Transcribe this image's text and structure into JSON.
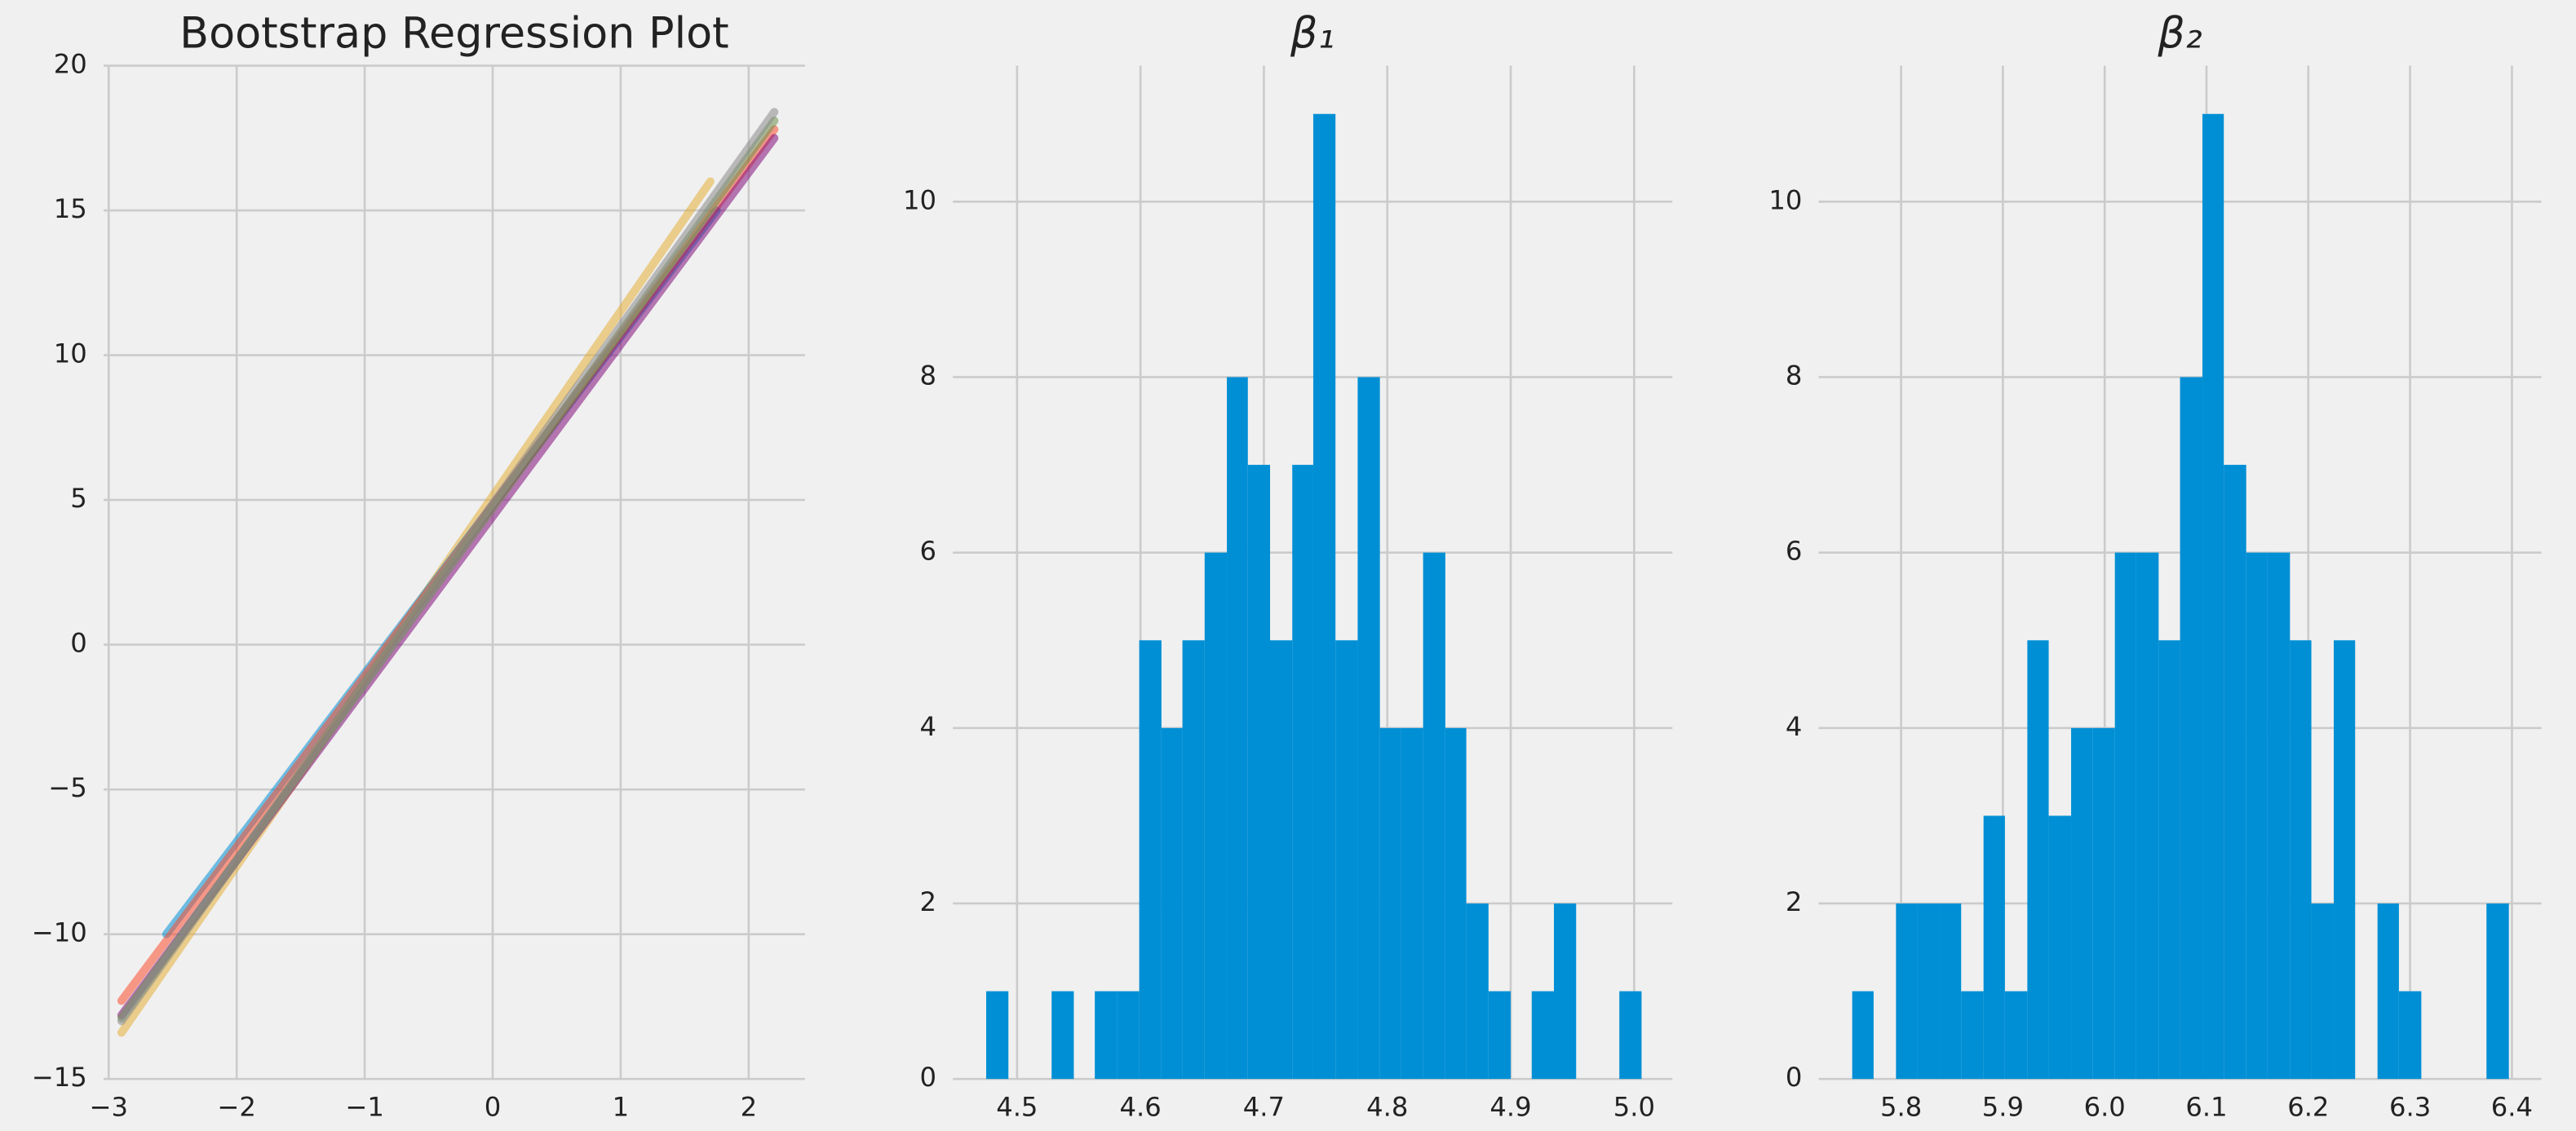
{
  "chart_data": [
    {
      "type": "line",
      "title": "Bootstrap Regression Plot",
      "xlim": [
        -3.04,
        2.44
      ],
      "ylim": [
        -15,
        20
      ],
      "xticks": [
        {
          "value": -3,
          "label": "−3"
        },
        {
          "value": -2,
          "label": "−2"
        },
        {
          "value": -1,
          "label": "−1"
        },
        0,
        1,
        2
      ],
      "yticks": [
        {
          "value": -15,
          "label": "−15"
        },
        {
          "value": -10,
          "label": "−10"
        },
        {
          "value": -5,
          "label": "−5"
        },
        0,
        5,
        10,
        15,
        20
      ],
      "grid": true,
      "series": [
        {
          "color": "#e5ae38",
          "x": [
            -2.9,
            1.7
          ],
          "values": [
            -13.4,
            16
          ]
        },
        {
          "color": "#008fd5",
          "x": [
            -2.55,
            1.75
          ],
          "values": [
            -10,
            15
          ]
        },
        {
          "color": "#fc4f30",
          "x": [
            -2.9,
            2.2
          ],
          "values": [
            -12.3,
            17.8
          ]
        },
        {
          "color": "#810f7c",
          "x": [
            -2.9,
            2.2
          ],
          "values": [
            -12.8,
            17.5
          ]
        },
        {
          "color": "#6d904f",
          "x": [
            -2.9,
            2.2
          ],
          "values": [
            -12.9,
            18.1
          ]
        },
        {
          "color": "#8b8b8b",
          "x": [
            -2.9,
            2.2
          ],
          "values": [
            -13,
            18.4
          ]
        }
      ]
    },
    {
      "type": "histogram",
      "title": "β₁",
      "color": "#008fd5",
      "grid": true,
      "xlim": [
        4.448,
        5.031
      ],
      "ylim": [
        0,
        11.55
      ],
      "xticks": [
        4.5,
        4.6,
        4.7,
        4.8,
        4.9,
        {
          "value": 5,
          "label": "5.0"
        }
      ],
      "yticks": [
        0,
        2,
        4,
        6,
        8,
        10
      ],
      "bins": [
        4.475,
        4.493,
        4.51,
        4.528,
        4.546,
        4.563,
        4.581,
        4.599,
        4.617,
        4.634,
        4.652,
        4.67,
        4.687,
        4.705,
        4.723,
        4.74,
        4.758,
        4.776,
        4.794,
        4.811,
        4.829,
        4.847,
        4.864,
        4.882,
        4.9,
        4.917,
        4.935,
        4.953,
        4.97,
        4.988,
        5.006
      ],
      "values": [
        1,
        0,
        0,
        1,
        0,
        1,
        1,
        5,
        4,
        5,
        6,
        8,
        7,
        5,
        7,
        11,
        5,
        8,
        4,
        4,
        6,
        4,
        2,
        1,
        0,
        1,
        2,
        0,
        0,
        1
      ]
    },
    {
      "type": "histogram",
      "title": "β₂",
      "color": "#008fd5",
      "grid": true,
      "xlim": [
        5.719,
        6.429
      ],
      "ylim": [
        0,
        11.55
      ],
      "xticks": [
        5.8,
        5.9,
        {
          "value": 6,
          "label": "6.0"
        },
        6.1,
        6.2,
        6.3,
        6.4
      ],
      "yticks": [
        0,
        2,
        4,
        6,
        8,
        10
      ],
      "bins": [
        5.752,
        5.773,
        5.795,
        5.816,
        5.838,
        5.859,
        5.881,
        5.902,
        5.924,
        5.945,
        5.967,
        5.988,
        6.01,
        6.031,
        6.053,
        6.074,
        6.096,
        6.117,
        6.139,
        6.16,
        6.182,
        6.203,
        6.225,
        6.246,
        6.268,
        6.289,
        6.311,
        6.332,
        6.354,
        6.375,
        6.397
      ],
      "values": [
        1,
        0,
        2,
        2,
        2,
        1,
        3,
        1,
        5,
        3,
        4,
        4,
        6,
        6,
        5,
        8,
        11,
        7,
        6,
        6,
        5,
        2,
        5,
        0,
        2,
        1,
        0,
        0,
        0,
        2
      ]
    }
  ]
}
